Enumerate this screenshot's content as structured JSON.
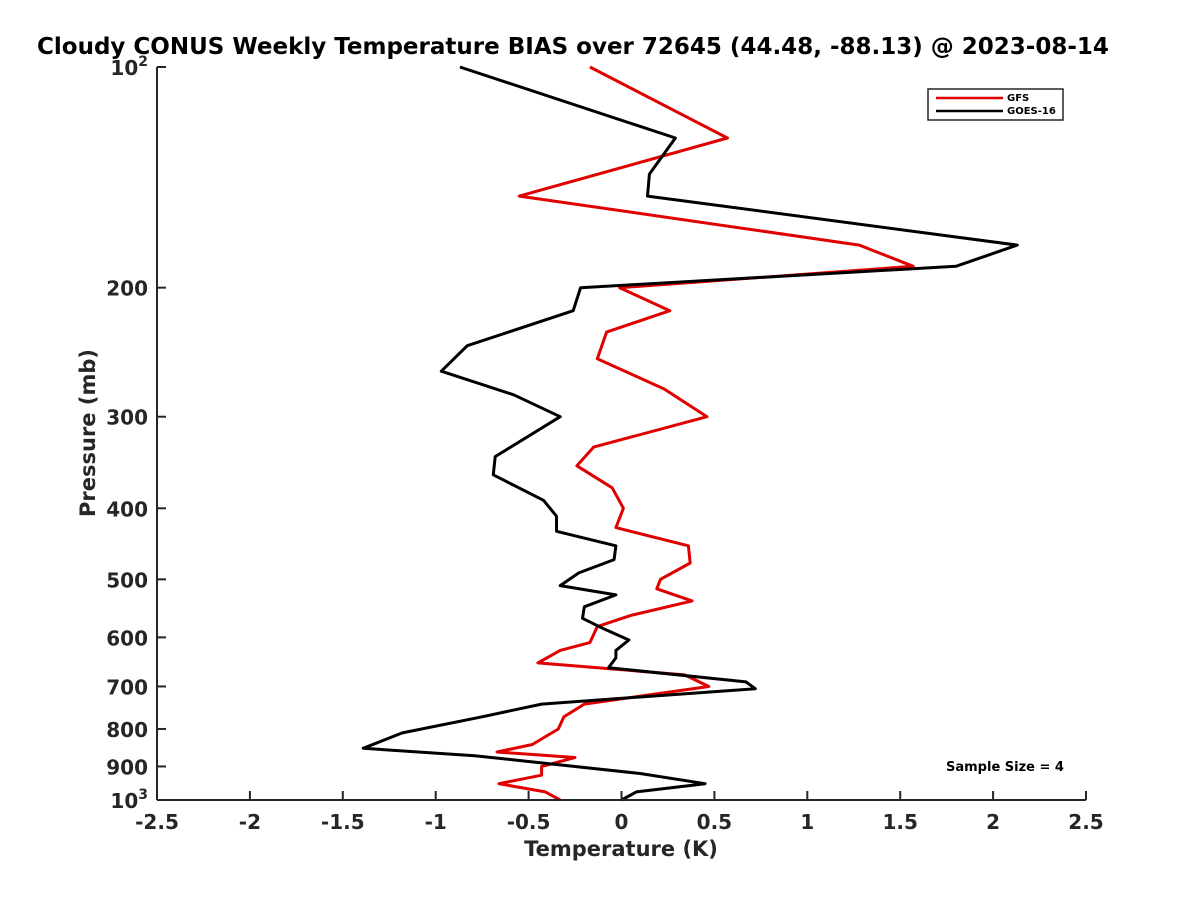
{
  "chart_data": {
    "type": "line",
    "title": "Cloudy CONUS Weekly Temperature BIAS over 72645 (44.48, -88.13) @ 2023-08-14",
    "xlabel": "Temperature (K)",
    "ylabel": "Pressure (mb)",
    "xlim": [
      -2.5,
      2.5
    ],
    "ylim": [
      100,
      1000
    ],
    "y_scale": "log",
    "y_reversed": true,
    "grid": false,
    "legend_placement": "top-right",
    "x_ticks": [
      "-2.5",
      "-2",
      "-1.5",
      "-1",
      "-0.5",
      "0",
      "0.5",
      "1",
      "1.5",
      "2",
      "2.5"
    ],
    "x_tick_values": [
      -2.5,
      -2,
      -1.5,
      -1,
      -0.5,
      0,
      0.5,
      1,
      1.5,
      2,
      2.5
    ],
    "y_tick_values": [
      100,
      200,
      300,
      400,
      500,
      600,
      700,
      800,
      900,
      1000
    ],
    "y_ticks": [
      {
        "value": 100,
        "base": "10",
        "exp": "2"
      },
      {
        "value": 200,
        "base": "200",
        "exp": ""
      },
      {
        "value": 300,
        "base": "300",
        "exp": ""
      },
      {
        "value": 400,
        "base": "400",
        "exp": ""
      },
      {
        "value": 500,
        "base": "500",
        "exp": ""
      },
      {
        "value": 600,
        "base": "600",
        "exp": ""
      },
      {
        "value": 700,
        "base": "700",
        "exp": ""
      },
      {
        "value": 800,
        "base": "800",
        "exp": ""
      },
      {
        "value": 900,
        "base": "900",
        "exp": ""
      },
      {
        "value": 1000,
        "base": "10",
        "exp": "3"
      }
    ],
    "annotation": "Sample Size = 4",
    "series": [
      {
        "name": "GFS",
        "color": "#e00000",
        "points": [
          [
            -0.17,
            100
          ],
          [
            0.57,
            125
          ],
          [
            -0.55,
            150
          ],
          [
            1.28,
            175
          ],
          [
            1.57,
            187
          ],
          [
            -0.01,
            200
          ],
          [
            0.26,
            215
          ],
          [
            -0.08,
            230
          ],
          [
            -0.13,
            250
          ],
          [
            0.23,
            275
          ],
          [
            0.46,
            300
          ],
          [
            -0.15,
            330
          ],
          [
            -0.24,
            350
          ],
          [
            -0.05,
            375
          ],
          [
            0.01,
            400
          ],
          [
            -0.03,
            425
          ],
          [
            0.36,
            450
          ],
          [
            0.37,
            475
          ],
          [
            0.21,
            500
          ],
          [
            0.19,
            515
          ],
          [
            0.38,
            535
          ],
          [
            0.05,
            560
          ],
          [
            -0.13,
            580
          ],
          [
            -0.17,
            610
          ],
          [
            -0.33,
            625
          ],
          [
            -0.45,
            650
          ],
          [
            0.34,
            675
          ],
          [
            0.47,
            700
          ],
          [
            0.13,
            720
          ],
          [
            -0.2,
            740
          ],
          [
            -0.31,
            770
          ],
          [
            -0.34,
            800
          ],
          [
            -0.48,
            840
          ],
          [
            -0.67,
            860
          ],
          [
            -0.25,
            875
          ],
          [
            -0.43,
            900
          ],
          [
            -0.43,
            925
          ],
          [
            -0.66,
            950
          ],
          [
            -0.41,
            975
          ],
          [
            -0.33,
            1000
          ]
        ]
      },
      {
        "name": "GOES-16",
        "color": "#000000",
        "points": [
          [
            -0.87,
            100
          ],
          [
            0.29,
            125
          ],
          [
            0.15,
            140
          ],
          [
            0.14,
            150
          ],
          [
            2.13,
            175
          ],
          [
            1.8,
            187
          ],
          [
            -0.22,
            200
          ],
          [
            -0.26,
            215
          ],
          [
            -0.83,
            240
          ],
          [
            -0.97,
            260
          ],
          [
            -0.58,
            280
          ],
          [
            -0.33,
            300
          ],
          [
            -0.68,
            340
          ],
          [
            -0.69,
            360
          ],
          [
            -0.42,
            390
          ],
          [
            -0.35,
            410
          ],
          [
            -0.35,
            430
          ],
          [
            -0.03,
            450
          ],
          [
            -0.04,
            470
          ],
          [
            -0.23,
            490
          ],
          [
            -0.33,
            510
          ],
          [
            -0.03,
            525
          ],
          [
            -0.2,
            545
          ],
          [
            -0.21,
            565
          ],
          [
            -0.09,
            585
          ],
          [
            0.04,
            605
          ],
          [
            -0.03,
            625
          ],
          [
            -0.03,
            640
          ],
          [
            -0.07,
            660
          ],
          [
            0.67,
            690
          ],
          [
            0.72,
            705
          ],
          [
            -0.43,
            740
          ],
          [
            -0.75,
            770
          ],
          [
            -1.18,
            810
          ],
          [
            -1.39,
            850
          ],
          [
            -0.79,
            870
          ],
          [
            0.1,
            920
          ],
          [
            0.45,
            950
          ],
          [
            0.08,
            975
          ],
          [
            0,
            1000
          ]
        ]
      }
    ]
  }
}
